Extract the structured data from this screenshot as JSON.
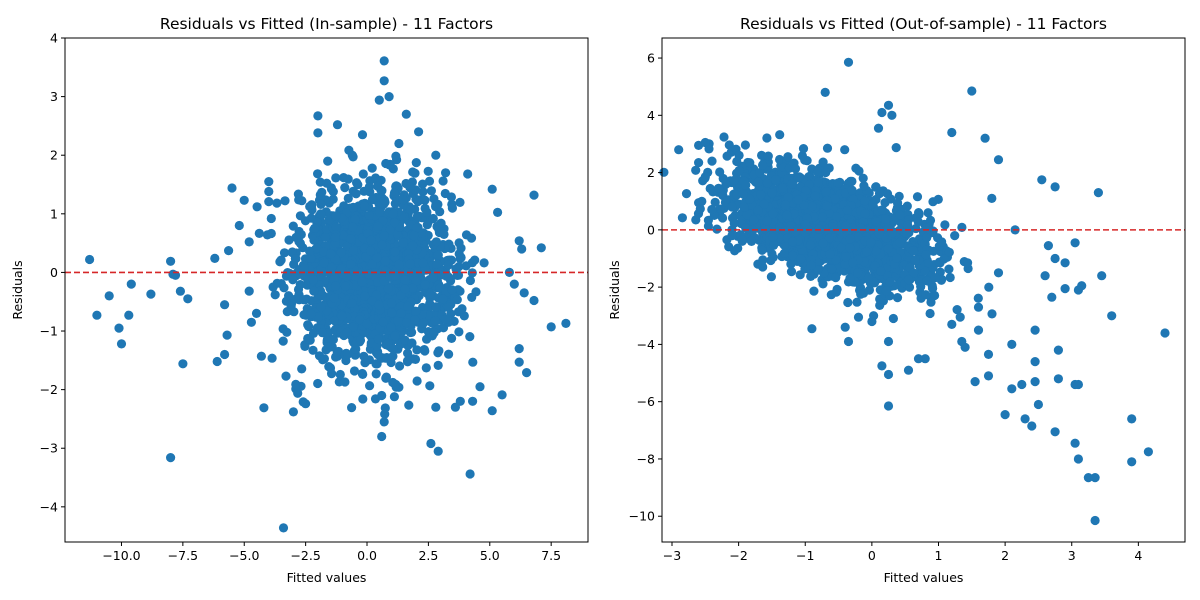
{
  "chart_data": [
    {
      "type": "scatter",
      "title": "Residuals vs Fitted (In-sample) - 11 Factors",
      "xlabel": "Fitted values",
      "ylabel": "Residuals",
      "xlim": [
        -12.3,
        9.0
      ],
      "ylim": [
        -4.6,
        4.0
      ],
      "xticks": [
        -10.0,
        -7.5,
        -5.0,
        -2.5,
        0.0,
        2.5,
        5.0,
        7.5
      ],
      "xtick_labels": [
        "−10.0",
        "−7.5",
        "−5.0",
        "−2.5",
        "0.0",
        "2.5",
        "5.0",
        "7.5"
      ],
      "yticks": [
        -4,
        -3,
        -2,
        -1,
        0,
        1,
        2,
        3,
        4
      ],
      "ytick_labels": [
        "−4",
        "−3",
        "−2",
        "−1",
        "0",
        "1",
        "2",
        "3",
        "4"
      ],
      "reference_line_y": 0,
      "reference_line_color": "#d62728",
      "point_color": "#1f77b4",
      "grid": false,
      "cluster": {
        "x_mean": 0.3,
        "x_sd": 1.6,
        "y_sd": 0.72,
        "n": 1900
      },
      "outliers": [
        [
          -11.3,
          0.22
        ],
        [
          -11.0,
          -0.73
        ],
        [
          -10.5,
          -0.4
        ],
        [
          -10.1,
          -0.95
        ],
        [
          -10.0,
          -1.22
        ],
        [
          -9.7,
          -0.73
        ],
        [
          -9.6,
          -0.2
        ],
        [
          -8.8,
          -0.37
        ],
        [
          -8.0,
          0.19
        ],
        [
          -7.8,
          -0.05
        ],
        [
          -7.9,
          -0.03
        ],
        [
          -7.6,
          -0.32
        ],
        [
          -7.5,
          -1.56
        ],
        [
          -7.3,
          -0.45
        ],
        [
          -8.0,
          -3.16
        ],
        [
          -6.2,
          0.24
        ],
        [
          -6.1,
          -1.52
        ],
        [
          -5.8,
          -1.4
        ],
        [
          -5.8,
          -0.55
        ],
        [
          -5.7,
          -1.07
        ],
        [
          -5.5,
          1.44
        ],
        [
          -5.2,
          0.8
        ],
        [
          -5.0,
          1.23
        ],
        [
          -4.8,
          0.52
        ],
        [
          -4.5,
          -0.7
        ],
        [
          -4.3,
          -1.43
        ],
        [
          -4.2,
          -2.31
        ],
        [
          -4.0,
          1.55
        ],
        [
          -4.0,
          1.38
        ],
        [
          -3.9,
          0.92
        ],
        [
          -3.4,
          -4.36
        ],
        [
          -3.3,
          -1.77
        ],
        [
          -3.0,
          -2.38
        ],
        [
          -2.9,
          -1.91
        ],
        [
          -2.6,
          -2.21
        ],
        [
          -2.5,
          -2.24
        ],
        [
          -2.0,
          2.67
        ],
        [
          -2.0,
          2.38
        ],
        [
          -1.2,
          2.52
        ],
        [
          0.7,
          3.61
        ],
        [
          0.7,
          3.27
        ],
        [
          0.9,
          3.0
        ],
        [
          0.5,
          2.94
        ],
        [
          1.6,
          2.7
        ],
        [
          2.1,
          2.4
        ],
        [
          3.1,
          1.56
        ],
        [
          4.1,
          1.68
        ],
        [
          5.1,
          1.42
        ],
        [
          6.8,
          1.32
        ],
        [
          6.2,
          0.54
        ],
        [
          7.1,
          0.42
        ],
        [
          6.3,
          0.4
        ],
        [
          5.8,
          0.0
        ],
        [
          6.0,
          -0.2
        ],
        [
          6.4,
          -0.35
        ],
        [
          6.8,
          -0.48
        ],
        [
          7.5,
          -0.93
        ],
        [
          8.1,
          -0.87
        ],
        [
          6.2,
          -1.3
        ],
        [
          6.2,
          -1.53
        ],
        [
          6.5,
          -1.71
        ],
        [
          5.5,
          -2.09
        ],
        [
          5.1,
          -2.36
        ],
        [
          4.6,
          -1.95
        ],
        [
          4.3,
          -2.2
        ],
        [
          3.8,
          -2.2
        ],
        [
          3.6,
          -2.3
        ],
        [
          2.8,
          -2.3
        ],
        [
          2.6,
          -2.92
        ],
        [
          2.9,
          -3.05
        ],
        [
          4.2,
          -3.44
        ],
        [
          0.6,
          -2.8
        ],
        [
          0.7,
          -2.55
        ],
        [
          0.6,
          -2.1
        ],
        [
          2.8,
          2.0
        ],
        [
          3.2,
          1.7
        ],
        [
          -1.6,
          1.9
        ],
        [
          -0.6,
          2.0
        ],
        [
          1.3,
          2.2
        ],
        [
          -0.9,
          -1.87
        ]
      ]
    },
    {
      "type": "scatter",
      "title": "Residuals vs Fitted (Out-of-sample) - 11 Factors",
      "xlabel": "Fitted values",
      "ylabel": "Residuals",
      "xlim": [
        -3.15,
        4.7
      ],
      "ylim": [
        -10.9,
        6.7
      ],
      "xticks": [
        -3,
        -2,
        -1,
        0,
        1,
        2,
        3,
        4
      ],
      "xtick_labels": [
        "−3",
        "−2",
        "−1",
        "0",
        "1",
        "2",
        "3",
        "4"
      ],
      "yticks": [
        -10,
        -8,
        -6,
        -4,
        -2,
        0,
        2,
        4,
        6
      ],
      "ytick_labels": [
        "−10",
        "−8",
        "−6",
        "−4",
        "−2",
        "0",
        "2",
        "4",
        "6"
      ],
      "reference_line_y": 0,
      "reference_line_color": "#d62728",
      "point_color": "#1f77b4",
      "grid": false,
      "cluster": {
        "x_mean": -0.6,
        "x_sd": 0.75,
        "y_intercept": 0.05,
        "y_slope": -0.75,
        "y_sd": 0.85,
        "n": 1900
      },
      "outliers": [
        [
          -2.9,
          2.8
        ],
        [
          -2.6,
          2.35
        ],
        [
          -2.6,
          2.95
        ],
        [
          -2.5,
          3.05
        ],
        [
          -2.5,
          1.85
        ],
        [
          -2.4,
          2.4
        ],
        [
          -2.3,
          1.45
        ],
        [
          -2.1,
          0.8
        ],
        [
          -2.1,
          -0.2
        ],
        [
          -0.7,
          4.8
        ],
        [
          -0.35,
          5.85
        ],
        [
          0.15,
          4.1
        ],
        [
          0.25,
          4.35
        ],
        [
          0.3,
          4.0
        ],
        [
          0.1,
          3.55
        ],
        [
          1.5,
          4.85
        ],
        [
          1.2,
          3.4
        ],
        [
          1.7,
          3.2
        ],
        [
          1.9,
          2.45
        ],
        [
          2.55,
          1.75
        ],
        [
          2.75,
          1.5
        ],
        [
          3.4,
          1.3
        ],
        [
          3.05,
          -0.45
        ],
        [
          3.45,
          -1.6
        ],
        [
          3.6,
          -3.0
        ],
        [
          4.4,
          -3.6
        ],
        [
          2.8,
          -4.2
        ],
        [
          2.45,
          -4.6
        ],
        [
          3.05,
          -5.4
        ],
        [
          3.1,
          -5.4
        ],
        [
          2.8,
          -5.2
        ],
        [
          2.5,
          -6.1
        ],
        [
          2.3,
          -6.6
        ],
        [
          2.4,
          -6.85
        ],
        [
          2.75,
          -7.05
        ],
        [
          3.05,
          -7.45
        ],
        [
          3.1,
          -8.0
        ],
        [
          3.25,
          -8.65
        ],
        [
          3.35,
          -8.65
        ],
        [
          3.9,
          -6.6
        ],
        [
          3.9,
          -8.1
        ],
        [
          4.15,
          -7.75
        ],
        [
          3.35,
          -10.15
        ],
        [
          2.0,
          -6.45
        ],
        [
          2.1,
          -5.55
        ],
        [
          2.45,
          -5.3
        ],
        [
          2.25,
          -5.4
        ],
        [
          1.55,
          -5.3
        ],
        [
          1.75,
          -5.1
        ],
        [
          0.25,
          -6.15
        ],
        [
          0.25,
          -5.05
        ],
        [
          0.15,
          -4.75
        ],
        [
          0.55,
          -4.9
        ],
        [
          0.8,
          -4.5
        ],
        [
          0.7,
          -4.5
        ],
        [
          1.75,
          -4.35
        ],
        [
          1.6,
          -3.5
        ],
        [
          2.1,
          -4.0
        ],
        [
          2.45,
          -3.5
        ],
        [
          2.9,
          -2.05
        ],
        [
          3.1,
          -2.1
        ],
        [
          3.15,
          -1.95
        ],
        [
          2.65,
          -0.55
        ],
        [
          2.15,
          0.0
        ],
        [
          1.8,
          1.1
        ],
        [
          -0.9,
          -3.45
        ],
        [
          -0.4,
          -3.4
        ],
        [
          -0.35,
          -3.9
        ],
        [
          1.4,
          -4.1
        ],
        [
          1.35,
          -3.9
        ],
        [
          0.25,
          -3.9
        ],
        [
          0.0,
          -3.2
        ],
        [
          -0.2,
          -3.05
        ],
        [
          1.2,
          -3.3
        ],
        [
          1.6,
          -2.7
        ],
        [
          2.6,
          -1.6
        ],
        [
          2.9,
          -1.15
        ],
        [
          2.75,
          -1.0
        ],
        [
          2.7,
          -2.35
        ],
        [
          1.9,
          -1.5
        ]
      ]
    }
  ]
}
